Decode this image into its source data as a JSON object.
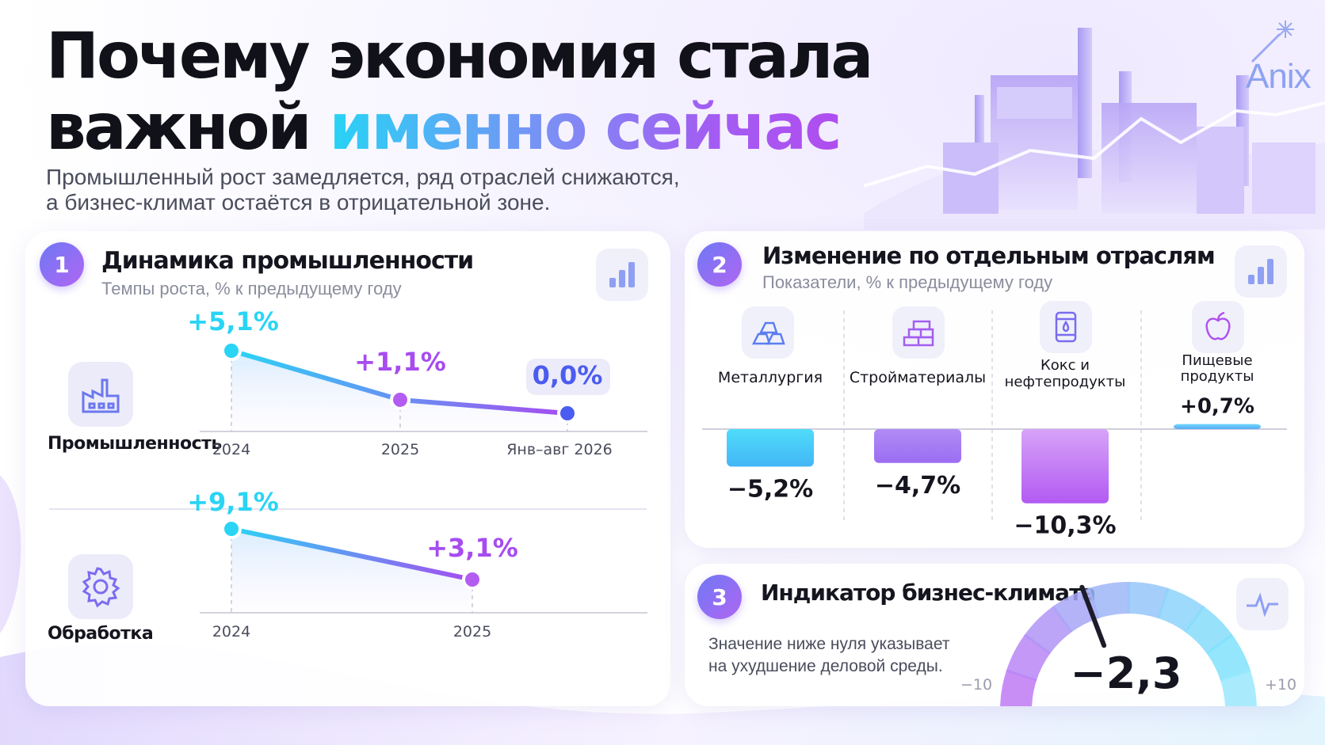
{
  "header": {
    "title_line1": "Почему экономия стала",
    "title_line2_plain": "важной",
    "title_line2_highlight": "именно сейчас",
    "subtitle_line1": "Промышленный рост замедляется, ряд отраслей снижаются,",
    "subtitle_line2": "а бизнес-климат остаётся в отрицательной зоне.",
    "logo": "Anix"
  },
  "colors": {
    "cyan": "#2ad4f5",
    "blue": "#4b5cf0",
    "violet": "#a64cf0",
    "purple": "#8c5cf2"
  },
  "panel1": {
    "number": "1",
    "title": "Динамика промышленности",
    "subtitle": "Темпы роста, % к предыдущему году",
    "icon": "bar-chart-icon",
    "rows": [
      {
        "label": "Промышленность",
        "icon": "factory-icon"
      },
      {
        "label": "Обработка",
        "icon": "gear-icon"
      }
    ]
  },
  "panel2": {
    "number": "2",
    "title": "Изменение по отдельным отраслям",
    "subtitle": "Показатели, % к предыдущему году",
    "icon": "bar-chart-icon",
    "sectors": [
      {
        "label": "Металлургия",
        "icon": "ingots-icon"
      },
      {
        "label": "Стройматериалы",
        "icon": "bricks-icon"
      },
      {
        "label_line1": "Кокс и",
        "label_line2": "нефтепродукты",
        "icon": "oil-barrel-icon"
      },
      {
        "label_line1": "Пищевые",
        "label_line2": "продукты",
        "icon": "apple-icon"
      }
    ]
  },
  "panel3": {
    "number": "3",
    "title": "Индикатор бизнес-климата",
    "desc_line1": "Значение ниже нуля указывает",
    "desc_line2": "на ухудшение деловой среды.",
    "icon": "pulse-icon"
  },
  "chart_data": [
    {
      "type": "line",
      "categories": [
        "2024",
        "2025",
        "Янв–авг 2026"
      ],
      "values": [
        5.1,
        1.1,
        0.0
      ],
      "labels": [
        "+5,1%",
        "+1,1%",
        "0,0%"
      ]
    },
    {
      "type": "line",
      "categories": [
        "2024",
        "2025"
      ],
      "values": [
        9.1,
        3.1
      ],
      "labels": [
        "+9,1%",
        "+3,1%"
      ]
    },
    {
      "type": "bar",
      "categories": [
        "Металлургия",
        "Стройматериалы",
        "Кокс и нефтепродукты",
        "Пищевые продукты"
      ],
      "values": [
        -5.2,
        -4.7,
        -10.3,
        0.7
      ],
      "labels": [
        "−5,2%",
        "−4,7%",
        "−10,3%",
        "+0,7%"
      ]
    },
    {
      "type": "gauge",
      "value": -2.3,
      "value_label": "−2,3",
      "min": -10,
      "max": 10,
      "min_label": "−10",
      "max_label": "+10"
    }
  ]
}
